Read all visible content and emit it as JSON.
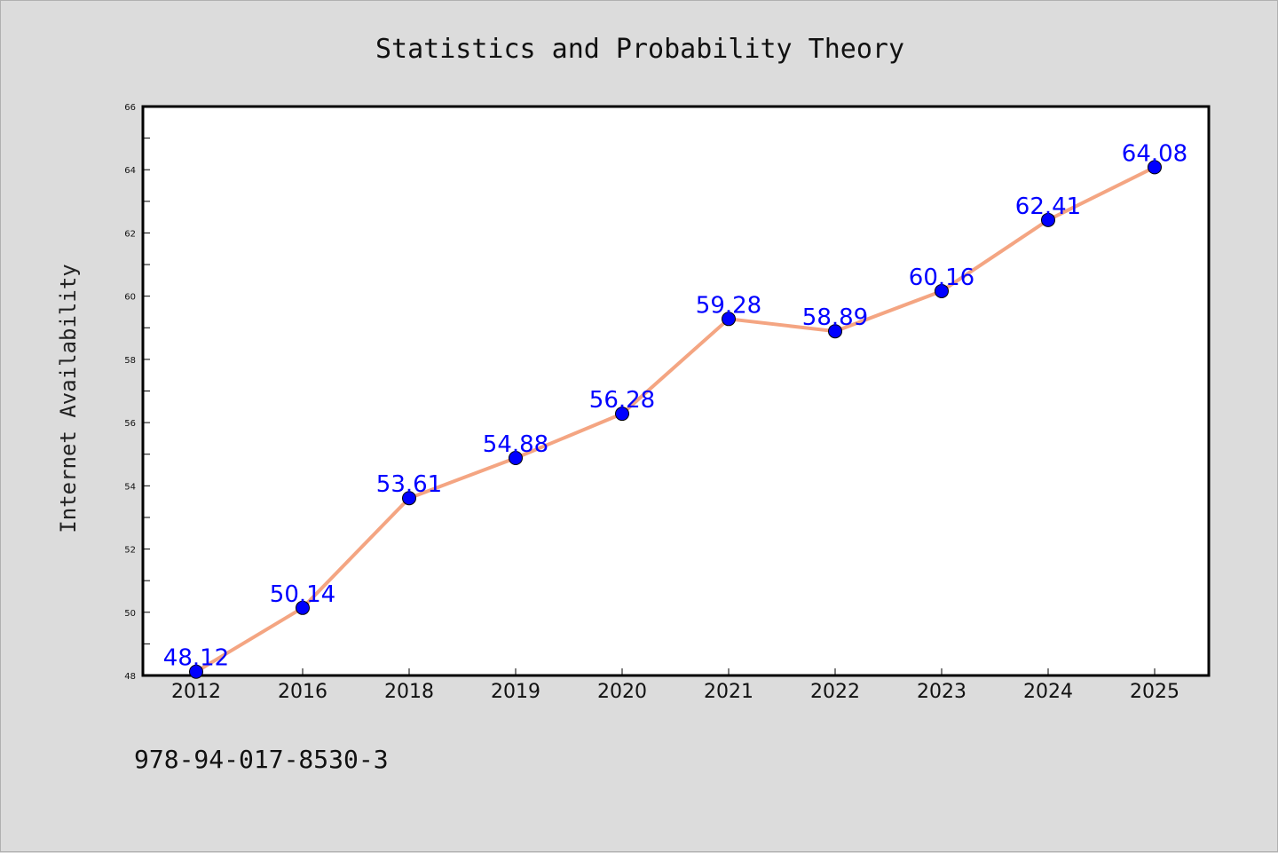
{
  "footer_text": "978-94-017-8530-3",
  "colors": {
    "background": "#dcdcdc",
    "plot_background": "#ffffff",
    "line": "#f4a582",
    "marker": "#0000ff",
    "data_label": "#0000ff"
  },
  "chart_data": {
    "type": "line",
    "title": "Statistics and Probability Theory",
    "xlabel": "",
    "ylabel": "Internet Availability",
    "categories": [
      "2012",
      "2016",
      "2018",
      "2019",
      "2020",
      "2021",
      "2022",
      "2023",
      "2024",
      "2025"
    ],
    "series": [
      {
        "values": [
          48.12,
          50.14,
          53.61,
          54.88,
          56.28,
          59.28,
          58.89,
          60.16,
          62.41,
          64.08
        ]
      }
    ],
    "data_labels": [
      "48.12",
      "50.14",
      "53.61",
      "54.88",
      "56.28",
      "59.28",
      "58.89",
      "60.16",
      "62.41",
      "64.08"
    ],
    "ylim": [
      48,
      66
    ],
    "yticks": [
      "48",
      "50",
      "52",
      "54",
      "56",
      "58",
      "60",
      "62",
      "64",
      "66"
    ],
    "grid": false,
    "legend": "none"
  }
}
